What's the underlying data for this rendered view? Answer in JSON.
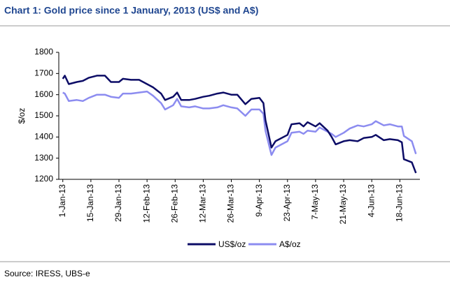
{
  "chart_data": {
    "type": "line",
    "title": "Chart 1: Gold price since 1 January, 2013 (US$ and A$)",
    "y_label": "$/oz",
    "source": "Source: IRESS, UBS-e",
    "x": [
      "2013-01-01",
      "2013-01-02",
      "2013-01-04",
      "2013-01-08",
      "2013-01-11",
      "2013-01-14",
      "2013-01-18",
      "2013-01-22",
      "2013-01-25",
      "2013-01-29",
      "2013-01-31",
      "2013-02-04",
      "2013-02-08",
      "2013-02-12",
      "2013-02-15",
      "2013-02-19",
      "2013-02-21",
      "2013-02-25",
      "2013-02-27",
      "2013-03-01",
      "2013-03-05",
      "2013-03-08",
      "2013-03-12",
      "2013-03-15",
      "2013-03-19",
      "2013-03-22",
      "2013-03-26",
      "2013-03-29",
      "2013-04-02",
      "2013-04-05",
      "2013-04-09",
      "2013-04-11",
      "2013-04-12",
      "2013-04-15",
      "2013-04-17",
      "2013-04-19",
      "2013-04-23",
      "2013-04-25",
      "2013-04-29",
      "2013-05-01",
      "2013-05-03",
      "2013-05-07",
      "2013-05-09",
      "2013-05-13",
      "2013-05-15",
      "2013-05-17",
      "2013-05-21",
      "2013-05-24",
      "2013-05-28",
      "2013-05-31",
      "2013-06-04",
      "2013-06-06",
      "2013-06-10",
      "2013-06-13",
      "2013-06-17",
      "2013-06-19",
      "2013-06-20",
      "2013-06-24",
      "2013-06-26"
    ],
    "series": [
      {
        "name": "US$/oz",
        "color": "#0c0c66",
        "values": [
          1675,
          1690,
          1650,
          1660,
          1665,
          1680,
          1690,
          1690,
          1660,
          1660,
          1675,
          1670,
          1670,
          1650,
          1635,
          1605,
          1575,
          1590,
          1610,
          1575,
          1575,
          1580,
          1590,
          1595,
          1605,
          1610,
          1600,
          1600,
          1555,
          1580,
          1585,
          1560,
          1480,
          1350,
          1380,
          1390,
          1410,
          1460,
          1465,
          1450,
          1470,
          1450,
          1465,
          1430,
          1400,
          1365,
          1380,
          1385,
          1380,
          1395,
          1400,
          1410,
          1385,
          1390,
          1385,
          1375,
          1295,
          1280,
          1230
        ]
      },
      {
        "name": "A$/oz",
        "color": "#8c8cf0",
        "values": [
          1610,
          1605,
          1570,
          1575,
          1570,
          1585,
          1600,
          1600,
          1590,
          1585,
          1605,
          1605,
          1610,
          1615,
          1595,
          1560,
          1530,
          1550,
          1580,
          1545,
          1540,
          1545,
          1535,
          1535,
          1540,
          1550,
          1540,
          1535,
          1500,
          1530,
          1530,
          1510,
          1430,
          1315,
          1350,
          1360,
          1380,
          1420,
          1425,
          1415,
          1430,
          1425,
          1445,
          1425,
          1415,
          1400,
          1420,
          1440,
          1455,
          1450,
          1460,
          1475,
          1455,
          1460,
          1450,
          1450,
          1405,
          1380,
          1320
        ]
      }
    ],
    "xlim": [
      "2012-12-30",
      "2013-06-28"
    ],
    "xticks": [
      {
        "value": "2013-01-01",
        "label": "1-Jan-13"
      },
      {
        "value": "2013-01-15",
        "label": "15-Jan-13"
      },
      {
        "value": "2013-01-29",
        "label": "29-Jan-13"
      },
      {
        "value": "2013-02-12",
        "label": "12-Feb-13"
      },
      {
        "value": "2013-02-26",
        "label": "26-Feb-13"
      },
      {
        "value": "2013-03-12",
        "label": "12-Mar-13"
      },
      {
        "value": "2013-03-26",
        "label": "26-Mar-13"
      },
      {
        "value": "2013-04-09",
        "label": "9-Apr-13"
      },
      {
        "value": "2013-04-23",
        "label": "23-Apr-13"
      },
      {
        "value": "2013-05-07",
        "label": "7-May-13"
      },
      {
        "value": "2013-05-21",
        "label": "21-May-13"
      },
      {
        "value": "2013-06-04",
        "label": "4-Jun-13"
      },
      {
        "value": "2013-06-18",
        "label": "18-Jun-13"
      }
    ],
    "ylim": [
      1200,
      1800
    ],
    "yticks": [
      1200,
      1300,
      1400,
      1500,
      1600,
      1700,
      1800
    ],
    "grid": false,
    "legend": "bottom"
  }
}
